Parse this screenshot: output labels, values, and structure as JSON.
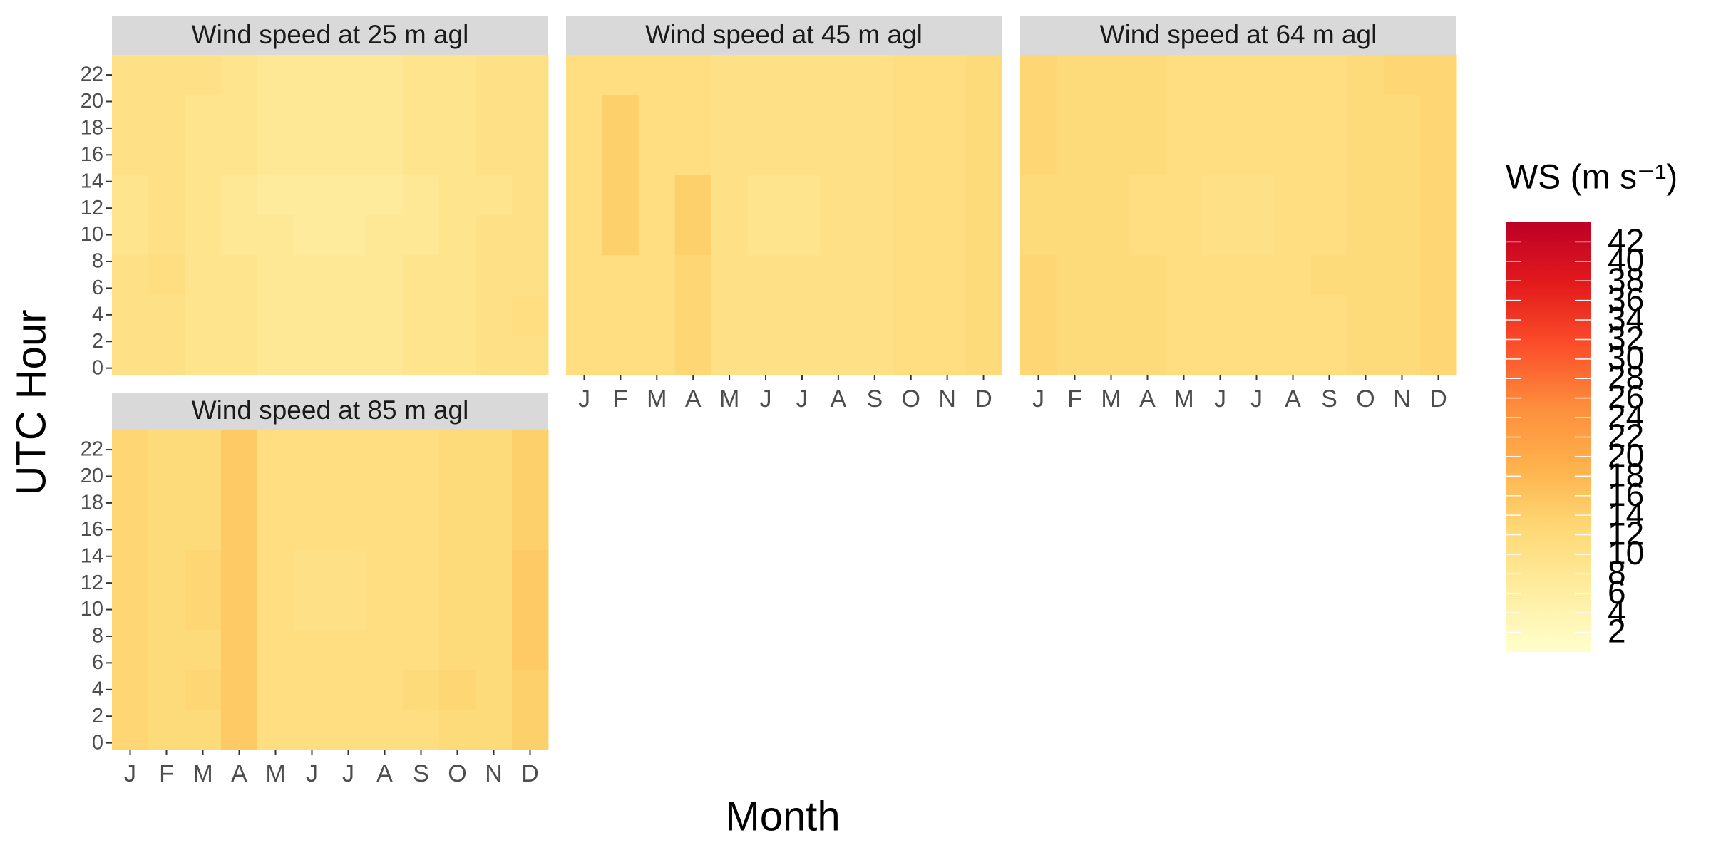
{
  "figure": {
    "xlabel": "Month",
    "ylabel": "UTC Hour",
    "colorbar": {
      "title": "WS (m s⁻¹)",
      "lim": [
        0,
        44
      ],
      "ticks": [
        2,
        4,
        6,
        8,
        10,
        12,
        14,
        16,
        18,
        20,
        22,
        24,
        26,
        28,
        30,
        32,
        34,
        36,
        38,
        40,
        42
      ],
      "colors": [
        "#ffffcc",
        "#ffeda0",
        "#fed976",
        "#feb24c",
        "#fd8d3c",
        "#fc4e2a",
        "#e31a1c",
        "#bd0026"
      ]
    }
  },
  "chart_data": [
    {
      "type": "heatmap",
      "title": "Wind speed at 25 m agl",
      "categories": [
        "J",
        "F",
        "M",
        "A",
        "M",
        "J",
        "J",
        "A",
        "S",
        "O",
        "N",
        "D"
      ],
      "hours": [
        0,
        3,
        6,
        9,
        12,
        15,
        18,
        21
      ],
      "ylim": [
        -0.5,
        23.5
      ],
      "yticks": [
        0,
        2,
        4,
        6,
        8,
        10,
        12,
        14,
        16,
        18,
        20,
        22
      ],
      "values": [
        [
          10,
          10,
          9,
          9,
          8,
          8,
          8,
          8,
          9,
          9,
          10,
          10
        ],
        [
          10,
          10,
          9,
          9,
          8,
          8,
          8,
          8,
          9,
          9,
          10,
          11
        ],
        [
          10,
          11,
          9,
          9,
          8,
          8,
          8,
          8,
          9,
          9,
          10,
          10
        ],
        [
          9,
          10,
          9,
          8,
          8,
          7,
          7,
          8,
          8,
          9,
          10,
          10
        ],
        [
          9,
          10,
          9,
          8,
          7,
          7,
          7,
          7,
          8,
          9,
          9,
          10
        ],
        [
          10,
          10,
          9,
          9,
          8,
          8,
          8,
          8,
          9,
          9,
          10,
          10
        ],
        [
          10,
          10,
          9,
          9,
          8,
          8,
          8,
          8,
          9,
          9,
          10,
          10
        ],
        [
          10,
          10,
          10,
          9,
          8,
          8,
          8,
          8,
          9,
          9,
          10,
          10
        ]
      ]
    },
    {
      "type": "heatmap",
      "title": "Wind speed at 45 m agl",
      "categories": [
        "J",
        "F",
        "M",
        "A",
        "M",
        "J",
        "J",
        "A",
        "S",
        "O",
        "N",
        "D"
      ],
      "hours": [
        0,
        3,
        6,
        9,
        12,
        15,
        18,
        21
      ],
      "ylim": [
        -0.5,
        23.5
      ],
      "yticks": [
        0,
        2,
        4,
        6,
        8,
        10,
        12,
        14,
        16,
        18,
        20,
        22
      ],
      "values": [
        [
          11,
          11,
          11,
          13,
          10,
          10,
          10,
          10,
          10,
          11,
          11,
          12
        ],
        [
          11,
          11,
          11,
          13,
          10,
          10,
          10,
          10,
          10,
          11,
          11,
          12
        ],
        [
          11,
          11,
          11,
          13,
          10,
          10,
          10,
          10,
          10,
          11,
          11,
          12
        ],
        [
          11,
          14,
          11,
          14,
          10,
          9,
          9,
          10,
          10,
          11,
          11,
          12
        ],
        [
          11,
          14,
          11,
          14,
          10,
          9,
          9,
          10,
          10,
          11,
          11,
          12
        ],
        [
          11,
          14,
          11,
          11,
          10,
          10,
          10,
          10,
          10,
          11,
          11,
          12
        ],
        [
          11,
          14,
          11,
          11,
          10,
          10,
          10,
          10,
          10,
          11,
          11,
          12
        ],
        [
          11,
          11,
          11,
          11,
          10,
          10,
          10,
          10,
          10,
          11,
          11,
          12
        ]
      ]
    },
    {
      "type": "heatmap",
      "title": "Wind speed at 64 m agl",
      "categories": [
        "J",
        "F",
        "M",
        "A",
        "M",
        "J",
        "J",
        "A",
        "S",
        "O",
        "N",
        "D"
      ],
      "hours": [
        0,
        3,
        6,
        9,
        12,
        15,
        18,
        21
      ],
      "ylim": [
        -0.5,
        23.5
      ],
      "yticks": [
        0,
        2,
        4,
        6,
        8,
        10,
        12,
        14,
        16,
        18,
        20,
        22
      ],
      "values": [
        [
          13,
          12,
          12,
          12,
          11,
          11,
          11,
          11,
          11,
          12,
          12,
          13
        ],
        [
          13,
          12,
          12,
          12,
          11,
          11,
          11,
          11,
          11,
          12,
          12,
          13
        ],
        [
          13,
          12,
          12,
          12,
          11,
          11,
          11,
          11,
          12,
          12,
          12,
          13
        ],
        [
          12,
          12,
          12,
          11,
          11,
          10,
          10,
          11,
          11,
          12,
          12,
          13
        ],
        [
          12,
          12,
          12,
          11,
          11,
          10,
          10,
          11,
          11,
          12,
          12,
          13
        ],
        [
          13,
          12,
          12,
          12,
          11,
          11,
          11,
          11,
          11,
          12,
          12,
          13
        ],
        [
          13,
          12,
          12,
          12,
          11,
          11,
          11,
          11,
          11,
          12,
          12,
          13
        ],
        [
          13,
          12,
          12,
          12,
          11,
          11,
          11,
          11,
          11,
          12,
          13,
          13
        ]
      ]
    },
    {
      "type": "heatmap",
      "title": "Wind speed at 85 m agl",
      "categories": [
        "J",
        "F",
        "M",
        "A",
        "M",
        "J",
        "J",
        "A",
        "S",
        "O",
        "N",
        "D"
      ],
      "hours": [
        0,
        3,
        6,
        9,
        12,
        15,
        18,
        21
      ],
      "ylim": [
        -0.5,
        23.5
      ],
      "yticks": [
        0,
        2,
        4,
        6,
        8,
        10,
        12,
        14,
        16,
        18,
        20,
        22
      ],
      "values": [
        [
          13,
          12,
          12,
          15,
          11,
          11,
          11,
          11,
          11,
          12,
          12,
          14
        ],
        [
          13,
          12,
          13,
          15,
          11,
          11,
          11,
          11,
          12,
          13,
          12,
          14
        ],
        [
          13,
          12,
          12,
          15,
          11,
          11,
          11,
          11,
          11,
          12,
          12,
          15
        ],
        [
          13,
          12,
          13,
          15,
          11,
          10,
          10,
          11,
          11,
          12,
          12,
          15
        ],
        [
          13,
          12,
          13,
          15,
          11,
          10,
          10,
          11,
          11,
          12,
          12,
          15
        ],
        [
          13,
          12,
          12,
          15,
          11,
          11,
          11,
          11,
          11,
          12,
          12,
          14
        ],
        [
          13,
          12,
          12,
          15,
          11,
          11,
          11,
          11,
          11,
          12,
          12,
          14
        ],
        [
          13,
          12,
          12,
          15,
          11,
          11,
          11,
          11,
          11,
          12,
          12,
          14
        ]
      ]
    }
  ]
}
